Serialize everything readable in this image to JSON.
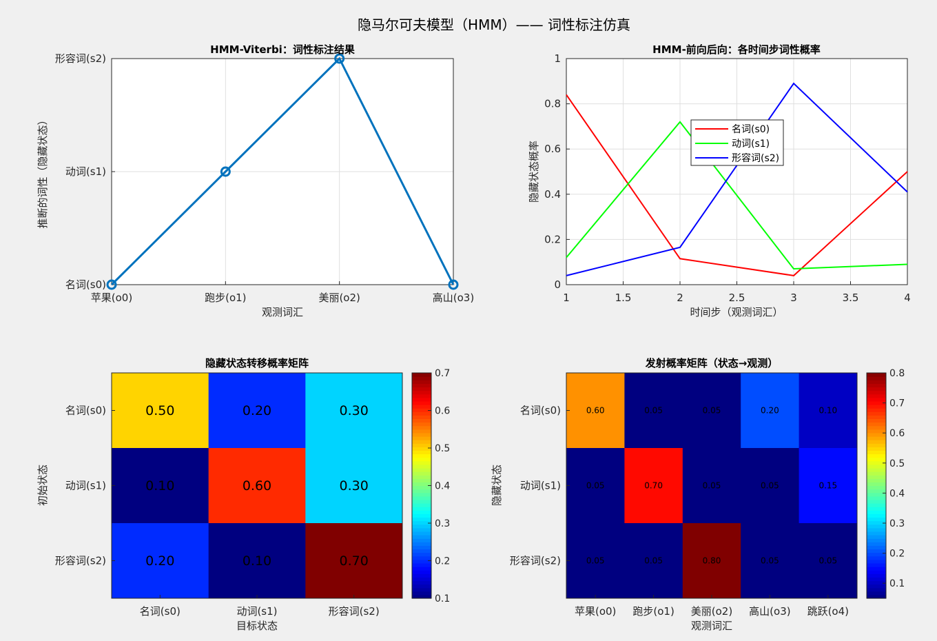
{
  "figure": {
    "title": "隐马尔可夫模型（HMM）—— 词性标注仿真"
  },
  "chart_data": [
    {
      "type": "line",
      "title": "HMM-Viterbi：词性标注结果",
      "xlabel": "观测词汇",
      "ylabel": "推断的词性（隐藏状态）",
      "x_categories": [
        "苹果(o0)",
        "跑步(o1)",
        "美丽(o2)",
        "高山(o3)"
      ],
      "y_categories": [
        "名词(s0)",
        "动词(s1)",
        "形容词(s2)"
      ],
      "y_values": [
        0,
        1,
        2,
        0
      ],
      "marker": "circle",
      "color": "#0072bd",
      "grid": true
    },
    {
      "type": "line",
      "title": "HMM-前向后向：各时间步词性概率",
      "xlabel": "时间步（观测词汇）",
      "ylabel": "隐藏状态概率",
      "x": [
        1,
        2,
        3,
        4
      ],
      "xlim": [
        1,
        4
      ],
      "ylim": [
        0,
        1
      ],
      "x_ticks": [
        "1",
        "1.5",
        "2",
        "2.5",
        "3",
        "3.5",
        "4"
      ],
      "y_ticks": [
        "0",
        "0.2",
        "0.4",
        "0.6",
        "0.8",
        "1"
      ],
      "legend_position": "center-left",
      "grid": true,
      "series": [
        {
          "name": "名词(s0)",
          "color": "#ff0000",
          "values": [
            0.84,
            0.115,
            0.04,
            0.5
          ]
        },
        {
          "name": "动词(s1)",
          "color": "#00ff00",
          "values": [
            0.12,
            0.72,
            0.07,
            0.09
          ]
        },
        {
          "name": "形容词(s2)",
          "color": "#0000ff",
          "values": [
            0.04,
            0.165,
            0.89,
            0.41
          ]
        }
      ]
    },
    {
      "type": "heatmap",
      "title": "隐藏状态转移概率矩阵",
      "xlabel": "目标状态",
      "ylabel": "初始状态",
      "x_categories": [
        "名词(s0)",
        "动词(s1)",
        "形容词(s2)"
      ],
      "y_categories": [
        "名词(s0)",
        "动词(s1)",
        "形容词(s2)"
      ],
      "values": [
        [
          0.5,
          0.2,
          0.3
        ],
        [
          0.1,
          0.6,
          0.3
        ],
        [
          0.2,
          0.1,
          0.7
        ]
      ],
      "labels": [
        [
          "0.50",
          "0.20",
          "0.30"
        ],
        [
          "0.10",
          "0.60",
          "0.30"
        ],
        [
          "0.20",
          "0.10",
          "0.70"
        ]
      ],
      "colormap": "jet",
      "clim": [
        0.1,
        0.7
      ],
      "colorbar_ticks": [
        "0.1",
        "0.2",
        "0.3",
        "0.4",
        "0.5",
        "0.6",
        "0.7"
      ]
    },
    {
      "type": "heatmap",
      "title": "发射概率矩阵（状态→观测）",
      "xlabel": "观测词汇",
      "ylabel": "隐藏状态",
      "x_categories": [
        "苹果(o0)",
        "跑步(o1)",
        "美丽(o2)",
        "高山(o3)",
        "跳跃(o4)"
      ],
      "y_categories": [
        "名词(s0)",
        "动词(s1)",
        "形容词(s2)"
      ],
      "values": [
        [
          0.6,
          0.05,
          0.05,
          0.2,
          0.1
        ],
        [
          0.05,
          0.7,
          0.05,
          0.05,
          0.15
        ],
        [
          0.05,
          0.05,
          0.8,
          0.05,
          0.05
        ]
      ],
      "labels": [
        [
          "0.60",
          "0.05",
          "0.05",
          "0.20",
          "0.10"
        ],
        [
          "0.05",
          "0.70",
          "0.05",
          "0.05",
          "0.15"
        ],
        [
          "0.05",
          "0.05",
          "0.80",
          "0.05",
          "0.05"
        ]
      ],
      "colormap": "jet",
      "clim": [
        0.05,
        0.8
      ],
      "colorbar_ticks": [
        "0.1",
        "0.2",
        "0.3",
        "0.4",
        "0.5",
        "0.6",
        "0.7",
        "0.8"
      ]
    }
  ]
}
